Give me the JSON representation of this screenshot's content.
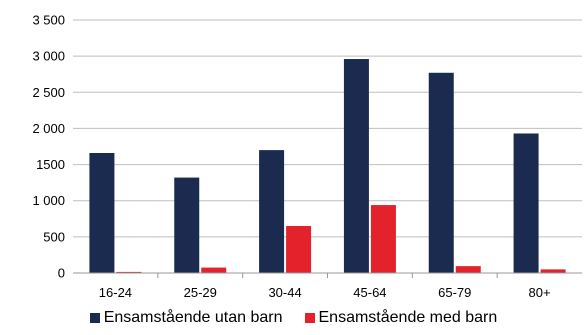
{
  "chart_data": {
    "type": "bar",
    "categories": [
      "16-24",
      "25-29",
      "30-44",
      "45-64",
      "65-79",
      "80+"
    ],
    "series": [
      {
        "name": "Ensamstående utan barn",
        "color": "#1b2b4f",
        "values": [
          1660,
          1320,
          1700,
          2960,
          2770,
          1930
        ]
      },
      {
        "name": "Ensamstående med barn",
        "color": "#e3222b",
        "values": [
          15,
          75,
          650,
          940,
          95,
          50
        ]
      }
    ],
    "yticks": [
      "0",
      "500",
      "1 000",
      "1500",
      "2 000",
      "2 500",
      "3 000",
      "3 500"
    ],
    "ylim": [
      0,
      3500
    ],
    "grid": true,
    "legend_position": "bottom"
  }
}
